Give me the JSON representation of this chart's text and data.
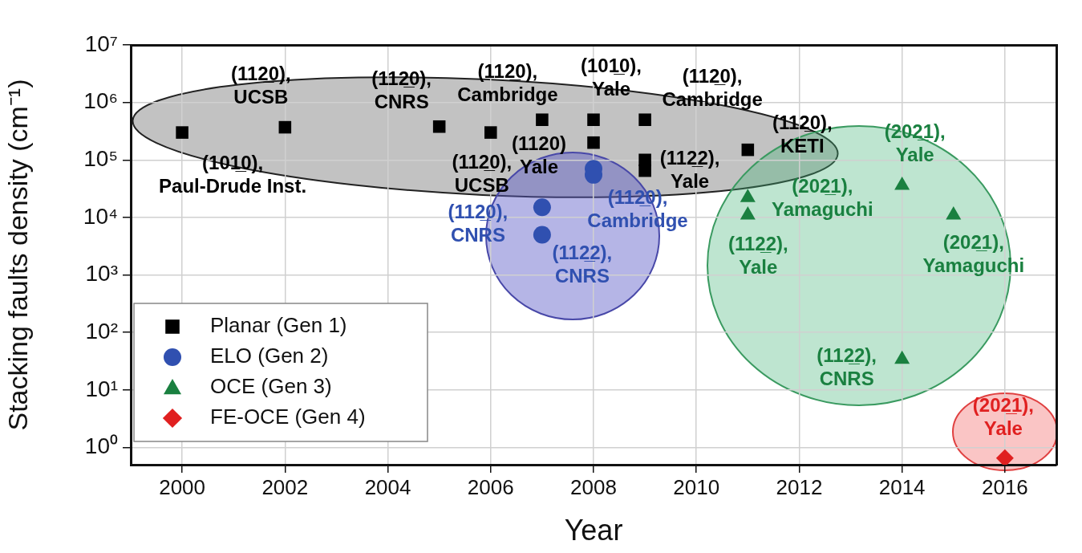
{
  "chart_data": {
    "type": "scatter",
    "xlabel": "Year",
    "ylabel": "Stacking faults density (cm⁻¹)",
    "log": "y",
    "grid": true,
    "legend": "bottom left",
    "xlim": [
      1999,
      2017
    ],
    "xticks": [
      2000,
      2002,
      2004,
      2006,
      2008,
      2010,
      2012,
      2014,
      2016
    ],
    "ylim": [
      0.5,
      10000000
    ],
    "yticks": [
      {
        "value": 1,
        "label": "10⁰"
      },
      {
        "value": 10,
        "label": "10¹"
      },
      {
        "value": 100,
        "label": "10²"
      },
      {
        "value": 1000,
        "label": "10³"
      },
      {
        "value": 10000,
        "label": "10⁴"
      },
      {
        "value": 100000,
        "label": "10⁵"
      },
      {
        "value": 1000000,
        "label": "10⁶"
      },
      {
        "value": 10000000,
        "label": "10⁷"
      }
    ],
    "series": [
      {
        "name": "Planar (Gen 1)",
        "color": "#000000",
        "marker": "square",
        "x": [
          2000,
          2002,
          2005,
          2006,
          2007,
          2008,
          2008,
          2009,
          2009,
          2009,
          2011
        ],
        "values": [
          300000,
          370000,
          380000,
          300000,
          500000,
          500000,
          200000,
          500000,
          100000,
          65000,
          150000
        ]
      },
      {
        "name": "ELO (Gen 2)",
        "color": "#3050b0",
        "marker": "circle",
        "x": [
          2007,
          2007,
          2008,
          2008
        ],
        "values": [
          15000,
          5000,
          70000,
          55000
        ]
      },
      {
        "name": "OCE (Gen 3)",
        "color": "#1a8040",
        "marker": "triangle",
        "x": [
          2011,
          2011,
          2014,
          2015,
          2014
        ],
        "values": [
          22000,
          11000,
          36000,
          11000,
          34
        ]
      },
      {
        "name": "FE-OCE (Gen 4)",
        "color": "#e02020",
        "marker": "diamond",
        "x": [
          2016
        ],
        "values": [
          0.65
        ]
      }
    ],
    "annotations": [
      {
        "text": "(101̲0),\nPaul-Drude Inst.",
        "x": 2000,
        "y": 300000
      },
      {
        "text": "(112̲0),\nUCSB",
        "x": 2002,
        "y": 370000
      },
      {
        "text": "(112̲0),\nCNRS",
        "x": 2005,
        "y": 380000
      },
      {
        "text": "(112̲0),\nCambridge",
        "x": 2007,
        "y": 500000
      },
      {
        "text": "(101̲0),\nYale",
        "x": 2008,
        "y": 500000
      },
      {
        "text": "(112̲0),\nCambridge",
        "x": 2009,
        "y": 500000
      },
      {
        "text": "(112̲0),\nKETI",
        "x": 2011,
        "y": 150000
      },
      {
        "text": "(112̲0),\nUCSB",
        "x": 2006,
        "y": 300000
      },
      {
        "text": "(1120)\nYale",
        "x": 2008,
        "y": 200000
      },
      {
        "text": "(112̲2),\nYale",
        "x": 2009,
        "y": 65000
      },
      {
        "text": "(112̲0),\nCNRS",
        "x": 2007,
        "y": 15000
      },
      {
        "text": "(112̲0),\nCambridge",
        "x": 2008,
        "y": 55000
      },
      {
        "text": "(112̲2),\nCNRS",
        "x": 2007,
        "y": 5000
      },
      {
        "text": "(202̲1),\nYamaguchi",
        "x": 2011,
        "y": 22000
      },
      {
        "text": "(112̲2),\nYale",
        "x": 2011,
        "y": 11000
      },
      {
        "text": "(202̲1),\nYale",
        "x": 2014,
        "y": 36000
      },
      {
        "text": "(202̲1),\nYamaguchi",
        "x": 2015,
        "y": 11000
      },
      {
        "text": "(112̲2),\nCNRS",
        "x": 2014,
        "y": 34
      },
      {
        "text": "(202̲1),\nYale",
        "x": 2016,
        "y": 0.65
      }
    ]
  }
}
